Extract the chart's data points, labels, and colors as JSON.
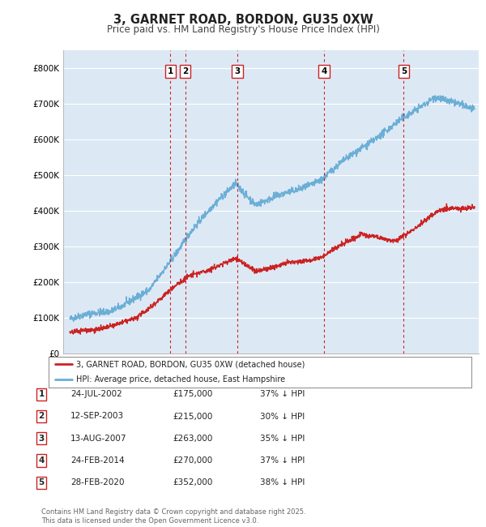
{
  "title": "3, GARNET ROAD, BORDON, GU35 0XW",
  "subtitle": "Price paid vs. HM Land Registry's House Price Index (HPI)",
  "ylim": [
    0,
    850000
  ],
  "yticks": [
    0,
    100000,
    200000,
    300000,
    400000,
    500000,
    600000,
    700000,
    800000
  ],
  "ytick_labels": [
    "£0",
    "£100K",
    "£200K",
    "£300K",
    "£400K",
    "£500K",
    "£600K",
    "£700K",
    "£800K"
  ],
  "background_color": "#ffffff",
  "plot_bg_color": "#dce9f5",
  "grid_color": "#ffffff",
  "hpi_color": "#6baed6",
  "price_color": "#cc2222",
  "sale_line_color": "#cc2222",
  "transactions": [
    {
      "num": 1,
      "date": "24-JUL-2002",
      "price": 175000,
      "hpi_pct": "37%",
      "x_year": 2002.56
    },
    {
      "num": 2,
      "date": "12-SEP-2003",
      "price": 215000,
      "hpi_pct": "30%",
      "x_year": 2003.7
    },
    {
      "num": 3,
      "date": "13-AUG-2007",
      "price": 263000,
      "hpi_pct": "35%",
      "x_year": 2007.62
    },
    {
      "num": 4,
      "date": "24-FEB-2014",
      "price": 270000,
      "hpi_pct": "37%",
      "x_year": 2014.15
    },
    {
      "num": 5,
      "date": "28-FEB-2020",
      "price": 352000,
      "hpi_pct": "38%",
      "x_year": 2020.15
    }
  ],
  "legend_label_price": "3, GARNET ROAD, BORDON, GU35 0XW (detached house)",
  "legend_label_hpi": "HPI: Average price, detached house, East Hampshire",
  "footnote": "Contains HM Land Registry data © Crown copyright and database right 2025.\nThis data is licensed under the Open Government Licence v3.0.",
  "xlim_start": 1994.5,
  "xlim_end": 2025.8
}
